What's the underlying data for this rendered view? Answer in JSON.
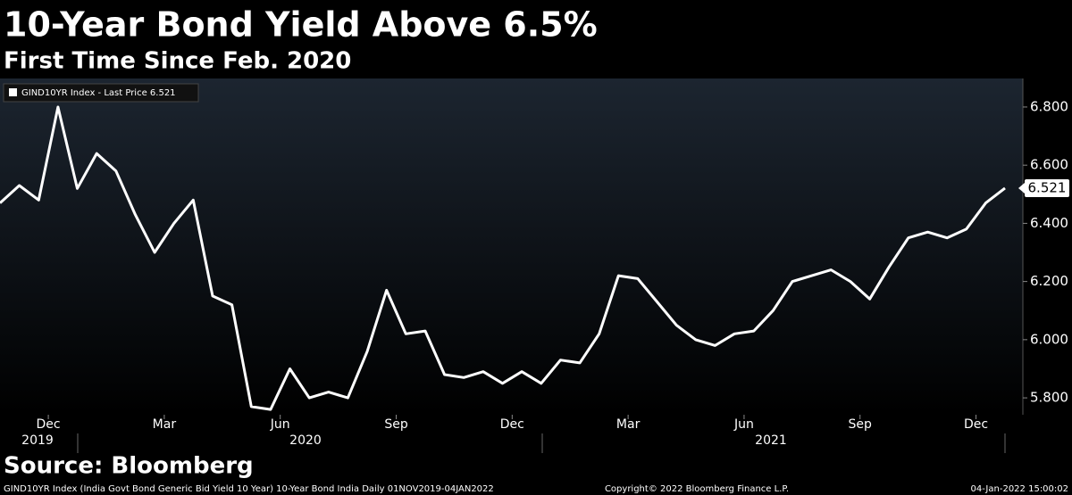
{
  "chart_data": {
    "type": "line",
    "title": "10-Year Bond Yield Above 6.5%",
    "subtitle": "First Time Since Feb. 2020",
    "source": "Source: Bloomberg",
    "footer_left": "GIND10YR Index (India Govt Bond Generic Bid Yield 10 Year) 10-Year Bond India  Daily 01NOV2019-04JAN2022",
    "footer_center": "Copyright© 2022 Bloomberg Finance L.P.",
    "footer_right": "04-Jan-2022 15:00:02",
    "last_price_label": "6.521",
    "x": [
      "2019-11",
      "2019-11",
      "2019-12",
      "2019-12",
      "2020-01",
      "2020-01",
      "2020-02",
      "2020-02",
      "2020-03",
      "2020-03",
      "2020-04",
      "2020-04",
      "2020-05",
      "2020-05",
      "2020-06",
      "2020-06",
      "2020-07",
      "2020-07",
      "2020-08",
      "2020-08",
      "2020-09",
      "2020-09",
      "2020-10",
      "2020-10",
      "2020-11",
      "2020-11",
      "2020-12",
      "2020-12",
      "2021-01",
      "2021-01",
      "2021-02",
      "2021-02",
      "2021-03",
      "2021-03",
      "2021-04",
      "2021-04",
      "2021-05",
      "2021-05",
      "2021-06",
      "2021-06",
      "2021-07",
      "2021-07",
      "2021-08",
      "2021-08",
      "2021-09",
      "2021-09",
      "2021-10",
      "2021-10",
      "2021-11",
      "2021-11",
      "2021-12",
      "2021-12",
      "2022-01"
    ],
    "month_labels": [
      "Dec",
      "Mar",
      "Jun",
      "Sep",
      "Dec",
      "Mar",
      "Jun",
      "Sep",
      "Dec"
    ],
    "year_labels": [
      "2019",
      "2020",
      "2021"
    ],
    "series": [
      {
        "name": "GIND10YR Index - Last Price 6.521",
        "color": "#ffffff",
        "values": [
          6.47,
          6.53,
          6.48,
          6.8,
          6.52,
          6.64,
          6.58,
          6.43,
          6.3,
          6.4,
          6.48,
          6.15,
          6.12,
          5.77,
          5.76,
          5.9,
          5.8,
          5.82,
          5.8,
          5.96,
          6.17,
          6.02,
          6.03,
          5.88,
          5.87,
          5.89,
          5.85,
          5.89,
          5.85,
          5.93,
          5.92,
          6.02,
          6.22,
          6.21,
          6.13,
          6.05,
          6.0,
          5.98,
          6.02,
          6.03,
          6.1,
          6.2,
          6.22,
          6.24,
          6.2,
          6.14,
          6.25,
          6.35,
          6.37,
          6.35,
          6.38,
          6.47,
          6.521
        ]
      }
    ],
    "ylim": [
      5.742,
      6.898
    ],
    "yticks": [
      {
        "value": 5.8,
        "label": "5.800"
      },
      {
        "value": 6.0,
        "label": "6.000"
      },
      {
        "value": 6.2,
        "label": "6.200"
      },
      {
        "value": 6.4,
        "label": "6.400"
      },
      {
        "value": 6.6,
        "label": "6.600"
      },
      {
        "value": 6.8,
        "label": "6.800"
      }
    ]
  }
}
